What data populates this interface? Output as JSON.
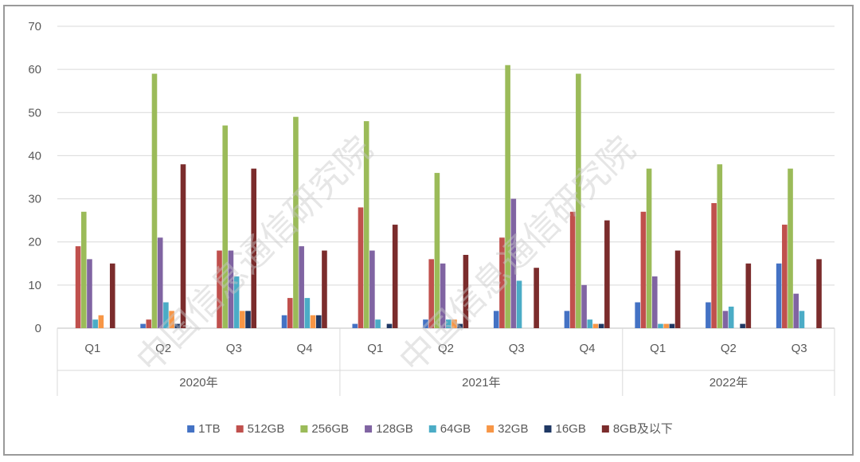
{
  "chart_data": {
    "type": "bar",
    "title": "",
    "xlabel": "",
    "ylabel": "",
    "ylim": [
      0,
      70
    ],
    "yticks": [
      0,
      10,
      20,
      30,
      40,
      50,
      60,
      70
    ],
    "grid": true,
    "legend_position": "bottom",
    "groups": [
      {
        "label": "2020年",
        "quarters": [
          "Q1",
          "Q2",
          "Q3",
          "Q4"
        ]
      },
      {
        "label": "2021年",
        "quarters": [
          "Q1",
          "Q2",
          "Q3",
          "Q4"
        ]
      },
      {
        "label": "2022年",
        "quarters": [
          "Q1",
          "Q2",
          "Q3"
        ]
      }
    ],
    "categories": [
      "2020年 Q1",
      "2020年 Q2",
      "2020年 Q3",
      "2020年 Q4",
      "2021年 Q1",
      "2021年 Q2",
      "2021年 Q3",
      "2021年 Q4",
      "2022年 Q1",
      "2022年 Q2",
      "2022年 Q3"
    ],
    "series": [
      {
        "name": "1TB",
        "color": "#4472c4",
        "values": [
          0,
          1,
          0,
          3,
          1,
          2,
          4,
          4,
          6,
          6,
          15
        ]
      },
      {
        "name": "512GB",
        "color": "#c0504d",
        "values": [
          19,
          2,
          18,
          7,
          28,
          16,
          21,
          27,
          27,
          29,
          24
        ]
      },
      {
        "name": "256GB",
        "color": "#9bbb59",
        "values": [
          27,
          59,
          47,
          49,
          48,
          36,
          61,
          59,
          37,
          38,
          37
        ]
      },
      {
        "name": "128GB",
        "color": "#8064a2",
        "values": [
          16,
          21,
          18,
          19,
          18,
          15,
          30,
          10,
          12,
          4,
          8
        ]
      },
      {
        "name": "64GB",
        "color": "#4bacc6",
        "values": [
          2,
          6,
          12,
          7,
          2,
          2,
          11,
          2,
          1,
          5,
          4
        ]
      },
      {
        "name": "32GB",
        "color": "#f79646",
        "values": [
          3,
          4,
          4,
          3,
          0,
          2,
          0,
          1,
          1,
          0,
          0
        ]
      },
      {
        "name": "16GB",
        "color": "#1f3864",
        "values": [
          0,
          1,
          4,
          3,
          1,
          1,
          0,
          1,
          1,
          1,
          0
        ]
      },
      {
        "name": "8GB及以下",
        "color": "#7b2c2c",
        "values": [
          15,
          38,
          37,
          18,
          24,
          17,
          14,
          25,
          18,
          15,
          16
        ]
      }
    ],
    "watermark": "中国信息通信研究院"
  }
}
